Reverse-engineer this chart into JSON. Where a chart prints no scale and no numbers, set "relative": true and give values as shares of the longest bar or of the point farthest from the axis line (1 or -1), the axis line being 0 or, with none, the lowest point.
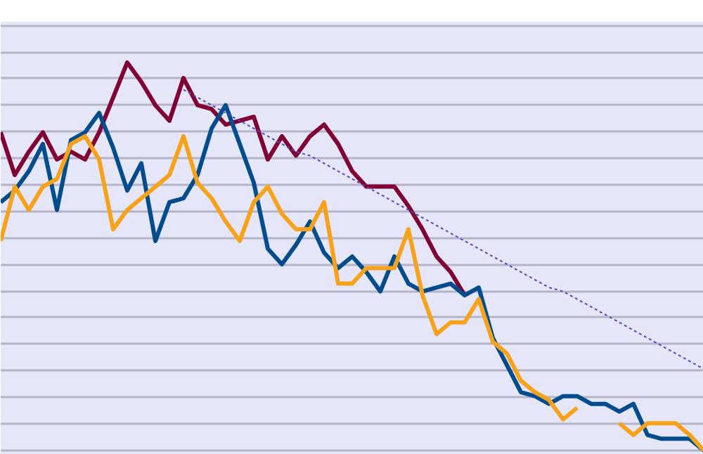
{
  "chart_data": {
    "type": "line",
    "relative": true,
    "grid": "y",
    "categories": [
      null,
      null,
      null,
      null,
      null,
      null,
      null,
      null,
      null,
      null,
      null,
      null,
      null,
      null,
      null,
      null,
      null,
      null,
      null,
      null,
      null,
      null,
      null,
      null,
      null,
      null,
      null,
      null,
      null,
      null,
      null,
      null,
      null,
      null,
      null,
      null,
      null,
      null,
      null,
      null,
      null,
      null,
      null,
      null,
      null,
      null,
      null,
      null,
      null,
      null,
      null
    ],
    "series": [
      {
        "color": "#800033",
        "values": [
          0.82,
          0.71,
          0.77,
          0.82,
          0.75,
          0.77,
          0.75,
          0.82,
          0.91,
          1.0,
          0.95,
          0.89,
          0.85,
          0.96,
          0.89,
          0.88,
          0.84,
          0.85,
          0.86,
          0.75,
          0.81,
          0.76,
          0.81,
          0.84,
          0.79,
          0.72,
          0.68,
          0.68,
          0.68,
          0.63,
          0.57,
          0.5,
          0.46,
          0.4,
          null,
          null,
          null,
          null,
          null,
          null,
          null,
          null,
          null,
          null,
          null,
          null,
          null,
          null,
          null,
          null,
          null
        ]
      },
      {
        "color": "#004c8c",
        "values": [
          0.64,
          0.67,
          0.72,
          0.79,
          0.62,
          0.8,
          0.82,
          0.87,
          0.78,
          0.67,
          0.74,
          0.54,
          0.64,
          0.65,
          0.71,
          0.83,
          0.89,
          0.79,
          0.69,
          0.52,
          0.48,
          0.53,
          0.59,
          0.51,
          0.47,
          0.5,
          0.46,
          0.41,
          0.5,
          0.43,
          0.41,
          0.42,
          0.43,
          0.4,
          0.42,
          0.29,
          0.22,
          0.15,
          0.14,
          0.12,
          0.14,
          0.14,
          0.12,
          0.12,
          0.1,
          0.12,
          0.04,
          0.03,
          0.03,
          0.03,
          0
        ]
      },
      {
        "color": "#f7a21b",
        "values": [
          0.54,
          0.68,
          0.62,
          0.68,
          0.7,
          0.79,
          0.81,
          0.75,
          0.57,
          0.62,
          0.65,
          0.68,
          0.71,
          0.81,
          0.69,
          0.65,
          0.59,
          0.54,
          0.64,
          0.68,
          0.61,
          0.57,
          0.57,
          0.64,
          0.43,
          0.43,
          0.47,
          0.47,
          0.47,
          0.57,
          0.4,
          0.3,
          0.33,
          0.33,
          0.39,
          0.28,
          0.25,
          0.18,
          0.15,
          0.13,
          0.08,
          0.11,
          null,
          null,
          0.07,
          0.04,
          0.07,
          0.07,
          0.07,
          0.04,
          0
        ]
      },
      {
        "color": "#4a4acc",
        "line_style": "dotted",
        "values": [
          null,
          null,
          null,
          null,
          null,
          null,
          null,
          null,
          null,
          null,
          null,
          null,
          null,
          0.93,
          0.91,
          0.89,
          0.87,
          0.85,
          0.83,
          0.81,
          0.79,
          0.77,
          0.76,
          0.74,
          0.72,
          0.7,
          0.68,
          0.66,
          0.64,
          0.62,
          0.6,
          0.58,
          0.56,
          0.54,
          0.52,
          0.5,
          0.48,
          0.46,
          0.44,
          0.42,
          0.41,
          0.39,
          0.37,
          0.35,
          0.33,
          0.31,
          0.29,
          0.27,
          0.25,
          0.23,
          0.21
        ]
      }
    ]
  }
}
